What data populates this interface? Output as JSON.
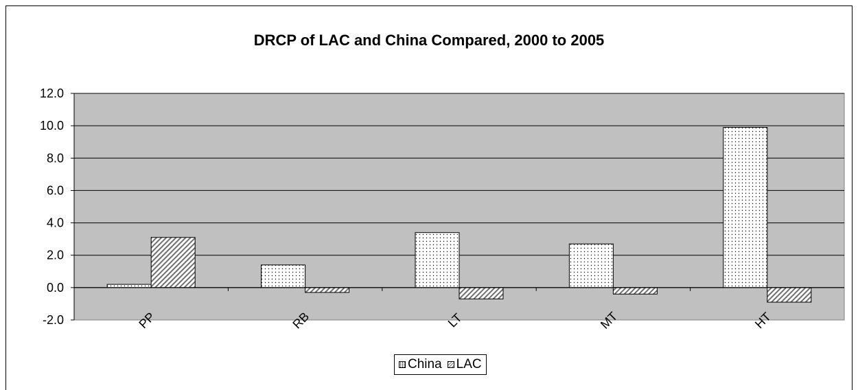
{
  "chart_data": {
    "type": "bar",
    "title": "DRCP of LAC and China Compared, 2000 to 2005",
    "categories": [
      "PP",
      "RB",
      "LT",
      "MT",
      "HT"
    ],
    "series": [
      {
        "name": "China",
        "values": [
          0.2,
          1.4,
          3.4,
          2.7,
          9.9
        ],
        "pattern": "dots"
      },
      {
        "name": "LAC",
        "values": [
          3.1,
          -0.3,
          -0.7,
          -0.4,
          -0.9
        ],
        "pattern": "hatch"
      }
    ],
    "ylim": [
      -2.0,
      12.0
    ],
    "yticks": [
      "-2.0",
      "0.0",
      "2.0",
      "4.0",
      "6.0",
      "8.0",
      "10.0",
      "12.0"
    ],
    "ytick_values": [
      -2,
      0,
      2,
      4,
      6,
      8,
      10,
      12
    ],
    "grid": true,
    "plot_background": "#c0c0c0",
    "legend_position": "bottom"
  }
}
